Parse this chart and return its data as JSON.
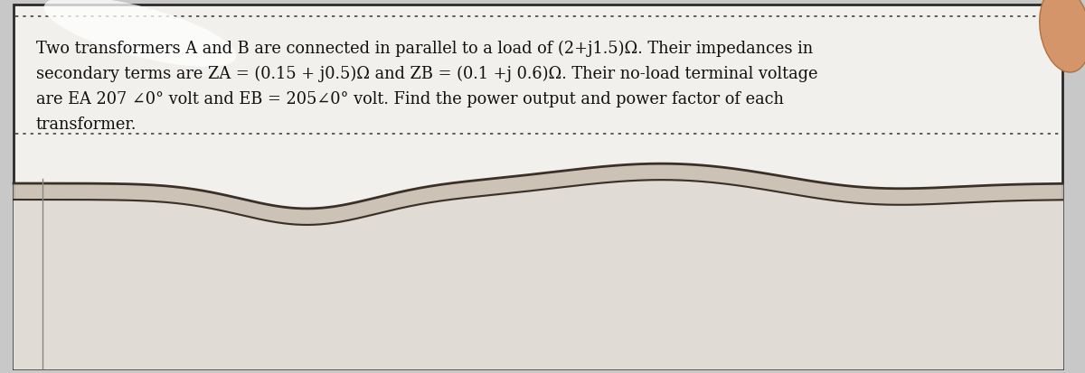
{
  "bg_color": "#c8c8c8",
  "page_bg": "#f2f0ec",
  "box_border": "#2a2a2a",
  "dot_line_color": "#444444",
  "text_color": "#111111",
  "line1": "Two transformers A and B are connected in parallel to a load of (2+j1.5)Ω. Their impedances in",
  "line2": "secondary terms are ZA = (0.15 + j0.5)Ω and ZB = (0.1 +j 0.6)Ω. Their no-load terminal voltage",
  "line3": "are EA 207 ∠0° volt and EB = 205∠0° volt. Find the power output and power factor of each",
  "line4": "transformer.",
  "figsize": [
    12.0,
    4.13
  ],
  "dpi": 100,
  "finger_color": "#d4956a",
  "finger_edge": "#b07040",
  "wave_color": "#3a3028",
  "wave_fill": "#c8beb0"
}
